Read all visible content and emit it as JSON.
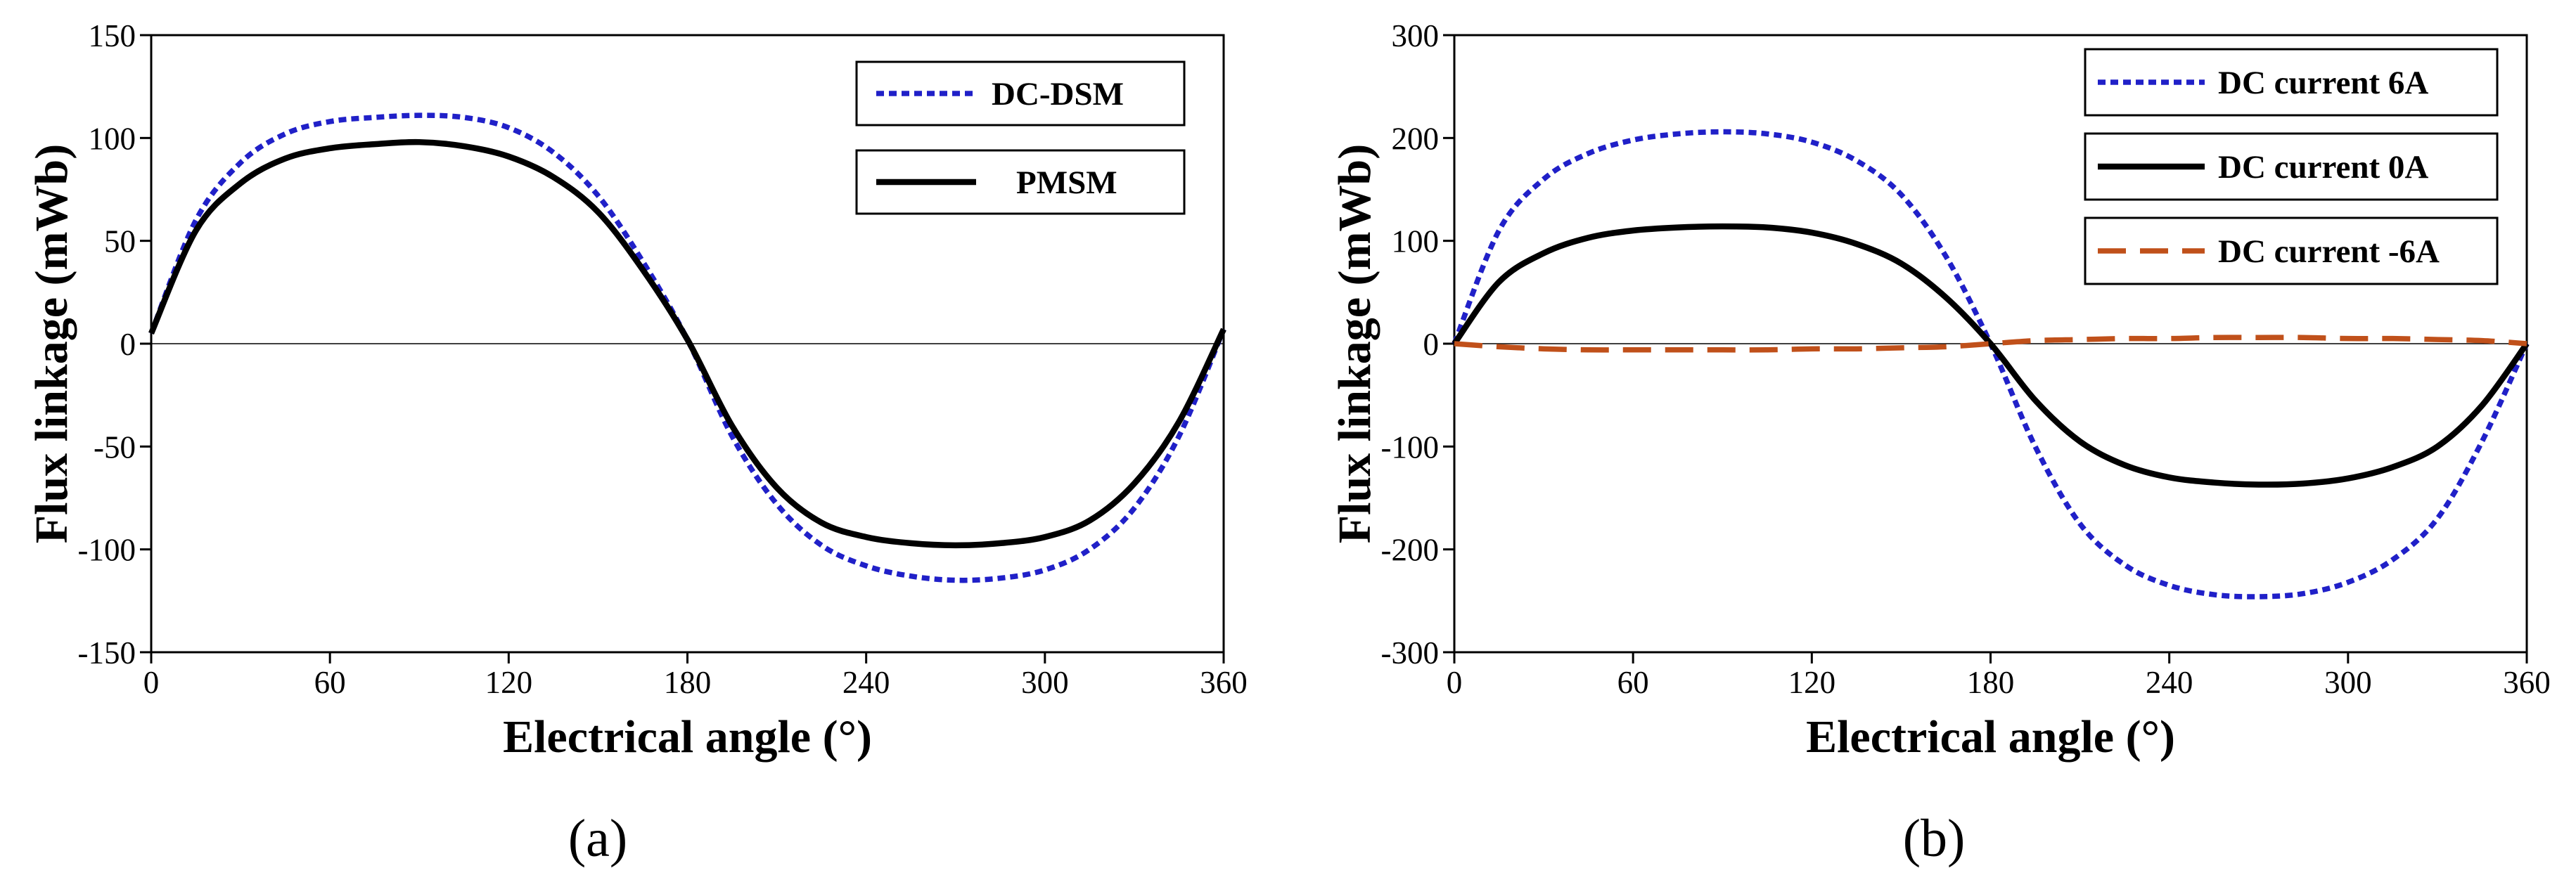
{
  "chart_data": [
    {
      "type": "line",
      "panel": "(a)",
      "xlabel": "Electrical angle (°)",
      "ylabel": "Flux linkage (mWb)",
      "xlim": [
        0,
        360
      ],
      "ylim": [
        -150,
        150
      ],
      "xticks": [
        0,
        60,
        120,
        180,
        240,
        300,
        360
      ],
      "yticks": [
        -150,
        -100,
        -50,
        0,
        50,
        100,
        150
      ],
      "x": [
        0,
        15,
        30,
        45,
        60,
        75,
        90,
        105,
        120,
        135,
        150,
        165,
        180,
        195,
        210,
        225,
        240,
        255,
        270,
        285,
        300,
        315,
        330,
        345,
        360
      ],
      "series": [
        {
          "name": "DC-DSM",
          "color": "#2020c8",
          "style": "dotted",
          "values": [
            5,
            60,
            88,
            102,
            108,
            110,
            111,
            110,
            105,
            93,
            72,
            40,
            2,
            -45,
            -78,
            -98,
            -108,
            -113,
            -115,
            -114,
            -110,
            -100,
            -80,
            -45,
            7
          ]
        },
        {
          "name": "PMSM",
          "color": "#000000",
          "style": "solid",
          "values": [
            5,
            55,
            78,
            90,
            95,
            97,
            98,
            96,
            91,
            81,
            64,
            36,
            2,
            -40,
            -70,
            -87,
            -94,
            -97,
            -98,
            -97,
            -94,
            -86,
            -68,
            -38,
            7
          ]
        }
      ]
    },
    {
      "type": "line",
      "panel": "(b)",
      "xlabel": "Electrical angle (°)",
      "ylabel": "Flux linkage (mWb)",
      "xlim": [
        0,
        360
      ],
      "ylim": [
        -300,
        300
      ],
      "xticks": [
        0,
        60,
        120,
        180,
        240,
        300,
        360
      ],
      "yticks": [
        -300,
        -200,
        -100,
        0,
        100,
        200,
        300
      ],
      "x": [
        0,
        15,
        30,
        45,
        60,
        75,
        90,
        105,
        120,
        135,
        150,
        165,
        180,
        195,
        210,
        225,
        240,
        255,
        270,
        285,
        300,
        315,
        330,
        345,
        360
      ],
      "series": [
        {
          "name": "DC current 6A",
          "color": "#2020c8",
          "style": "dotted",
          "values": [
            0,
            110,
            160,
            185,
            198,
            204,
            206,
            204,
            196,
            178,
            145,
            85,
            0,
            -100,
            -175,
            -215,
            -235,
            -244,
            -246,
            -243,
            -232,
            -210,
            -170,
            -95,
            0
          ]
        },
        {
          "name": "DC current 0A",
          "color": "#000000",
          "style": "solid",
          "values": [
            0,
            60,
            88,
            103,
            110,
            113,
            114,
            113,
            108,
            97,
            78,
            45,
            0,
            -55,
            -95,
            -118,
            -130,
            -135,
            -137,
            -136,
            -131,
            -120,
            -100,
            -60,
            0
          ]
        },
        {
          "name": "DC current -6A",
          "color": "#c0501a",
          "style": "dashed",
          "values": [
            0,
            -3,
            -5,
            -6,
            -6,
            -6,
            -6,
            -6,
            -5,
            -5,
            -4,
            -3,
            0,
            3,
            4,
            5,
            5,
            6,
            6,
            6,
            5,
            5,
            4,
            3,
            0
          ]
        }
      ]
    }
  ],
  "captions": [
    "(a)",
    "(b)"
  ]
}
